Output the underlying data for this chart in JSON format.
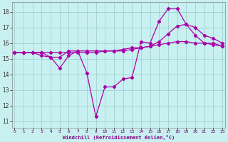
{
  "xlabel": "Windchill (Refroidissement éolien,°C)",
  "bg_color": "#c8f0f0",
  "grid_color": "#99cccc",
  "line_color": "#aa00aa",
  "x_ticks": [
    0,
    1,
    2,
    3,
    4,
    5,
    6,
    7,
    8,
    9,
    10,
    11,
    12,
    13,
    14,
    15,
    16,
    17,
    18,
    19,
    20,
    21,
    22,
    23
  ],
  "y_ticks": [
    11,
    12,
    13,
    14,
    15,
    16,
    17,
    18
  ],
  "xlim": [
    -0.3,
    23.3
  ],
  "ylim": [
    10.6,
    18.6
  ],
  "line1_x": [
    0,
    1,
    2,
    3,
    4,
    5,
    6,
    7,
    8,
    9,
    10,
    11,
    12,
    13,
    14,
    15,
    16,
    17,
    18,
    19,
    20,
    21,
    22,
    23
  ],
  "line1_y": [
    15.4,
    15.4,
    15.4,
    15.4,
    15.4,
    15.4,
    15.4,
    15.4,
    15.4,
    15.4,
    15.5,
    15.5,
    15.6,
    15.7,
    15.7,
    15.8,
    15.9,
    16.0,
    16.1,
    16.1,
    16.0,
    16.0,
    15.9,
    15.8
  ],
  "line2_x": [
    0,
    1,
    2,
    3,
    4,
    5,
    6,
    7,
    8,
    9,
    10,
    11,
    12,
    13,
    14,
    15,
    16,
    17,
    18,
    19,
    20,
    21,
    22,
    23
  ],
  "line2_y": [
    15.4,
    15.4,
    15.4,
    15.2,
    15.1,
    14.4,
    15.2,
    15.5,
    15.5,
    15.5,
    15.5,
    15.5,
    15.5,
    15.6,
    15.7,
    15.8,
    16.1,
    16.6,
    17.1,
    17.2,
    17.0,
    16.5,
    16.3,
    16.0
  ],
  "line3_x": [
    0,
    1,
    2,
    3,
    4,
    5,
    6,
    7,
    8,
    9,
    10,
    11,
    12,
    13,
    14,
    15,
    16,
    17,
    18,
    19,
    20,
    21,
    22,
    23
  ],
  "line3_y": [
    15.4,
    15.4,
    15.4,
    15.4,
    15.1,
    15.1,
    15.5,
    15.5,
    14.1,
    11.3,
    13.2,
    13.2,
    13.7,
    13.8,
    16.1,
    16.0,
    17.4,
    18.2,
    18.2,
    17.2,
    16.5,
    16.0,
    16.0,
    15.8
  ]
}
